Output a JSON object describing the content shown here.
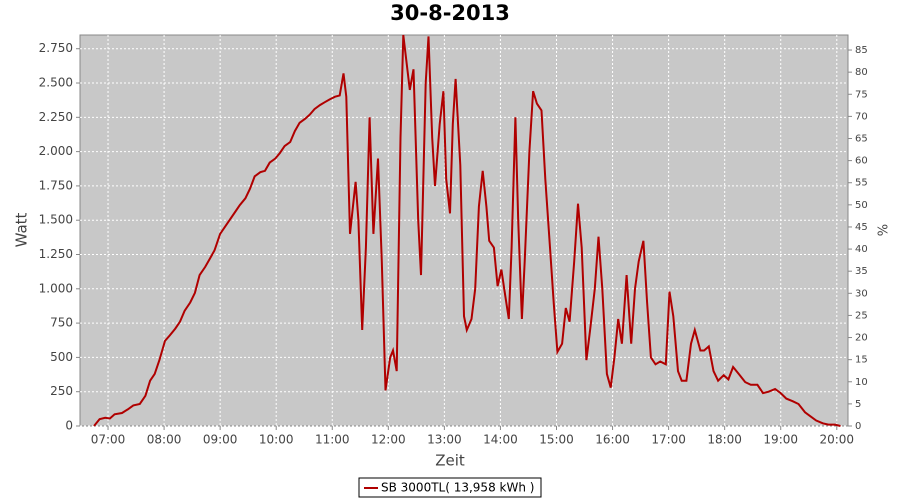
{
  "chart_data": {
    "type": "line",
    "title": "30-8-2013",
    "xlabel": "Zeit",
    "ylabel": "Watt",
    "y2label": "%",
    "grid": true,
    "xlim": [
      "06:30",
      "20:12"
    ],
    "xticks": [
      "07:00",
      "08:00",
      "09:00",
      "10:00",
      "11:00",
      "12:00",
      "13:00",
      "14:00",
      "15:00",
      "16:00",
      "17:00",
      "18:00",
      "19:00",
      "20:00"
    ],
    "ylim": [
      0,
      2850
    ],
    "yticks": [
      0,
      250,
      500,
      750,
      {
        "value": 1000,
        "label": "1.000"
      },
      {
        "value": 1250,
        "label": "1.250"
      },
      {
        "value": 1500,
        "label": "1.500"
      },
      {
        "value": 1750,
        "label": "1.750"
      },
      {
        "value": 2000,
        "label": "2.000"
      },
      {
        "value": 2250,
        "label": "2.250"
      },
      {
        "value": 2500,
        "label": "2.500"
      },
      {
        "value": 2750,
        "label": "2.750"
      }
    ],
    "y2lim": [
      0,
      88.4
    ],
    "y2ticks": [
      0,
      5,
      10,
      15,
      20,
      25,
      30,
      35,
      40,
      45,
      50,
      55,
      60,
      65,
      70,
      75,
      80,
      85
    ],
    "x": [
      "06:45",
      "06:51",
      "06:57",
      "07:02",
      "07:07",
      "07:15",
      "07:21",
      "07:27",
      "07:34",
      "07:40",
      "07:45",
      "07:50",
      "07:55",
      "08:01",
      "08:06",
      "08:12",
      "08:17",
      "08:22",
      "08:28",
      "08:33",
      "08:38",
      "08:44",
      "08:49",
      "08:54",
      "09:00",
      "09:05",
      "09:10",
      "09:16",
      "09:21",
      "09:27",
      "09:32",
      "09:37",
      "09:43",
      "09:48",
      "09:53",
      "09:59",
      "10:04",
      "10:09",
      "10:15",
      "10:20",
      "10:25",
      "10:31",
      "10:36",
      "10:41",
      "10:47",
      "10:52",
      "10:57",
      "11:03",
      "11:08",
      "11:12",
      "11:15",
      "11:19",
      "11:25",
      "11:28",
      "11:32",
      "11:36",
      "11:40",
      "11:44",
      "11:49",
      "11:53",
      "11:57",
      "12:02",
      "12:05",
      "12:09",
      "12:13",
      "12:16",
      "12:23",
      "12:27",
      "12:32",
      "12:35",
      "12:40",
      "12:43",
      "12:47",
      "12:50",
      "12:55",
      "12:59",
      "13:02",
      "13:06",
      "13:09",
      "13:12",
      "13:17",
      "13:21",
      "13:24",
      "13:29",
      "13:33",
      "13:37",
      "13:41",
      "13:45",
      "13:48",
      "13:53",
      "13:57",
      "14:01",
      "14:04",
      "14:09",
      "14:12",
      "14:16",
      "14:19",
      "14:23",
      "14:26",
      "14:31",
      "14:35",
      "14:39",
      "14:44",
      "14:48",
      "14:53",
      "14:57",
      "15:01",
      "15:06",
      "15:10",
      "15:14",
      "15:19",
      "15:23",
      "15:27",
      "15:32",
      "15:36",
      "15:41",
      "15:45",
      "15:49",
      "15:54",
      "15:58",
      "16:02",
      "16:06",
      "16:10",
      "16:15",
      "16:20",
      "16:24",
      "16:28",
      "16:33",
      "16:37",
      "16:41",
      "16:46",
      "16:51",
      "16:57",
      "17:01",
      "17:05",
      "17:10",
      "17:14",
      "17:19",
      "17:24",
      "17:28",
      "17:34",
      "17:38",
      "17:43",
      "17:48",
      "17:53",
      "17:59",
      "18:04",
      "18:09",
      "18:15",
      "18:22",
      "18:28",
      "18:35",
      "18:41",
      "18:47",
      "18:54",
      "19:00",
      "19:06",
      "19:13",
      "19:19",
      "19:26",
      "19:32",
      "19:38",
      "19:45",
      "19:51",
      "19:58",
      "20:04"
    ],
    "series": [
      {
        "name": "SB 3000TL( 13,958 kWh )",
        "color": "#b00000",
        "values": [
          0,
          50,
          60,
          55,
          85,
          95,
          120,
          150,
          160,
          220,
          330,
          380,
          480,
          620,
          660,
          710,
          760,
          840,
          900,
          970,
          1100,
          1160,
          1220,
          1280,
          1400,
          1450,
          1500,
          1560,
          1610,
          1660,
          1730,
          1820,
          1850,
          1860,
          1920,
          1950,
          1990,
          2040,
          2070,
          2150,
          2210,
          2240,
          2270,
          2310,
          2340,
          2360,
          2380,
          2400,
          2410,
          2570,
          2400,
          1400,
          1780,
          1500,
          700,
          1300,
          2250,
          1400,
          1950,
          1200,
          260,
          500,
          550,
          400,
          2100,
          2850,
          2450,
          2600,
          1500,
          1100,
          2500,
          2840,
          2100,
          1750,
          2200,
          2440,
          1800,
          1550,
          2200,
          2530,
          1900,
          800,
          700,
          780,
          1000,
          1600,
          1860,
          1600,
          1350,
          1300,
          1020,
          1140,
          1000,
          780,
          1300,
          2250,
          1500,
          780,
          1200,
          2000,
          2440,
          2350,
          2300,
          1800,
          1300,
          900,
          540,
          600,
          860,
          760,
          1200,
          1620,
          1300,
          480,
          700,
          1000,
          1380,
          1000,
          380,
          280,
          500,
          780,
          600,
          1100,
          600,
          1000,
          1200,
          1350,
          900,
          500,
          450,
          470,
          450,
          980,
          800,
          400,
          330,
          330,
          600,
          700,
          550,
          550,
          580,
          400,
          330,
          370,
          340,
          430,
          380,
          320,
          300,
          300,
          240,
          250,
          270,
          240,
          200,
          180,
          160,
          100,
          70,
          40,
          20,
          10,
          10,
          0
        ]
      }
    ]
  }
}
